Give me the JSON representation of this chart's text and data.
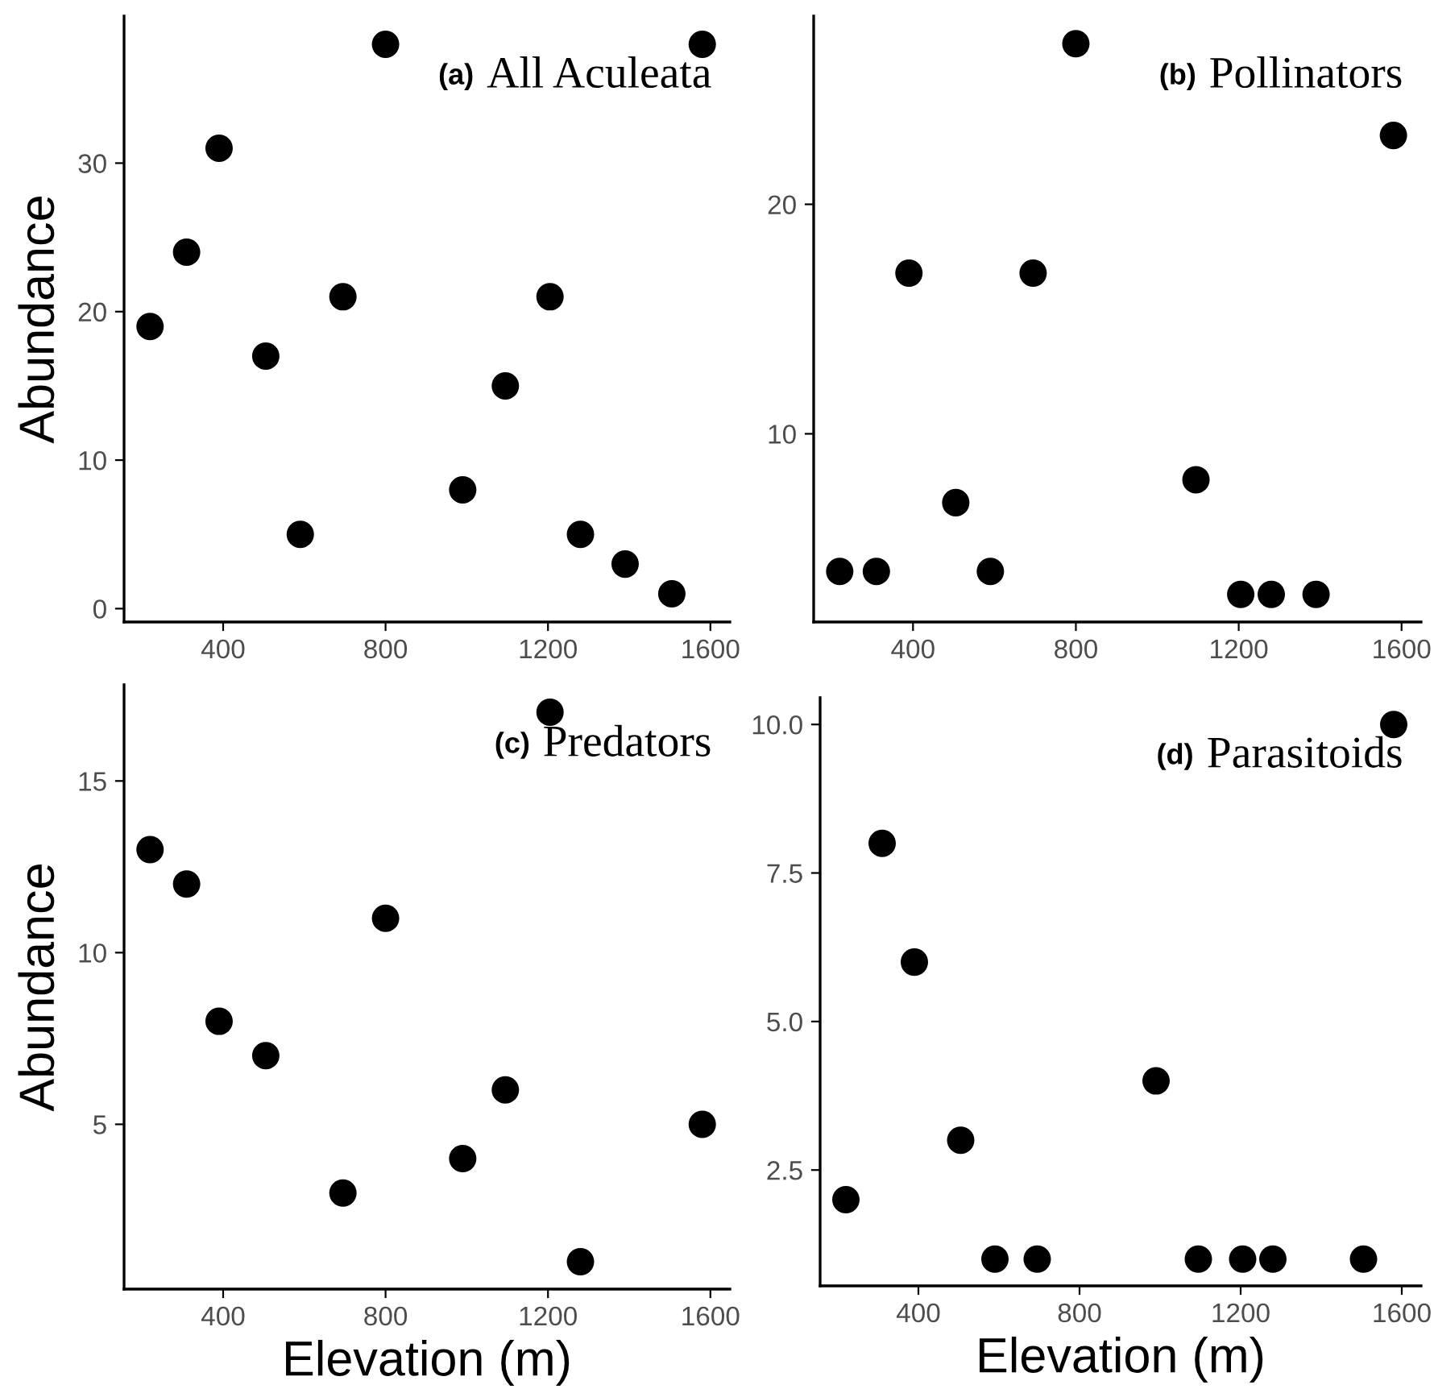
{
  "chart_data": [
    {
      "type": "scatter",
      "ylabel": "Abundance",
      "annotations": [
        "(a)",
        "All Aculeata"
      ],
      "x": [
        220,
        310,
        390,
        505,
        590,
        695,
        800,
        990,
        1095,
        1205,
        1280,
        1390,
        1505,
        1580
      ],
      "series": [
        {
          "color": "#000000",
          "values": [
            19,
            24,
            31,
            17,
            5,
            21,
            38,
            8,
            15,
            21,
            5,
            3,
            1,
            38
          ]
        }
      ],
      "xlim": [
        156,
        1648
      ],
      "ylim": [
        -0.9,
        39.9
      ],
      "xticks": [
        400,
        800,
        1200,
        1600
      ],
      "yticks": [
        0,
        10,
        20,
        30
      ],
      "marker": "circle",
      "grid": false,
      "legend": false
    },
    {
      "type": "scatter",
      "annotations": [
        "(b)",
        "Pollinators"
      ],
      "x": [
        220,
        310,
        390,
        505,
        590,
        695,
        800,
        1095,
        1205,
        1280,
        1390,
        1580
      ],
      "series": [
        {
          "color": "#000000",
          "values": [
            4,
            4,
            17,
            7,
            4,
            17,
            27,
            8,
            3,
            3,
            3,
            23
          ]
        }
      ],
      "xlim": [
        156,
        1648
      ],
      "ylim": [
        1.8,
        28.2
      ],
      "xticks": [
        400,
        800,
        1200,
        1600
      ],
      "yticks": [
        10,
        20
      ],
      "marker": "circle",
      "grid": false,
      "legend": false
    },
    {
      "type": "scatter",
      "xlabel": "Elevation (m)",
      "ylabel": "Abundance",
      "annotations": [
        "(c)",
        "Predators"
      ],
      "x": [
        220,
        310,
        390,
        505,
        695,
        800,
        990,
        1095,
        1205,
        1280,
        1580
      ],
      "series": [
        {
          "color": "#000000",
          "values": [
            13,
            12,
            8,
            7,
            3,
            11,
            4,
            6,
            17,
            1,
            5
          ]
        }
      ],
      "xlim": [
        156,
        1648
      ],
      "ylim": [
        0.2,
        17.8
      ],
      "xticks": [
        400,
        800,
        1200,
        1600
      ],
      "yticks": [
        5,
        10,
        15
      ],
      "marker": "circle",
      "grid": false,
      "legend": false
    },
    {
      "type": "scatter",
      "xlabel": "Elevation (m)",
      "annotations": [
        "(d)",
        "Parasitoids"
      ],
      "x": [
        220,
        310,
        390,
        505,
        590,
        695,
        990,
        1095,
        1205,
        1280,
        1505,
        1580
      ],
      "series": [
        {
          "color": "#000000",
          "values": [
            2,
            8,
            6,
            3,
            1,
            1,
            4,
            1,
            1,
            1,
            1,
            10
          ]
        }
      ],
      "xlim": [
        156,
        1648
      ],
      "ylim": [
        0.55,
        10.45
      ],
      "xticks": [
        400,
        800,
        1200,
        1600
      ],
      "yticks": [
        {
          "value": 2.5,
          "label": "2.5"
        },
        {
          "value": 5,
          "label": "5.0"
        },
        {
          "value": 7.5,
          "label": "7.5"
        },
        {
          "value": 10,
          "label": "10.0"
        }
      ],
      "marker": "circle",
      "grid": false,
      "legend": false
    }
  ]
}
